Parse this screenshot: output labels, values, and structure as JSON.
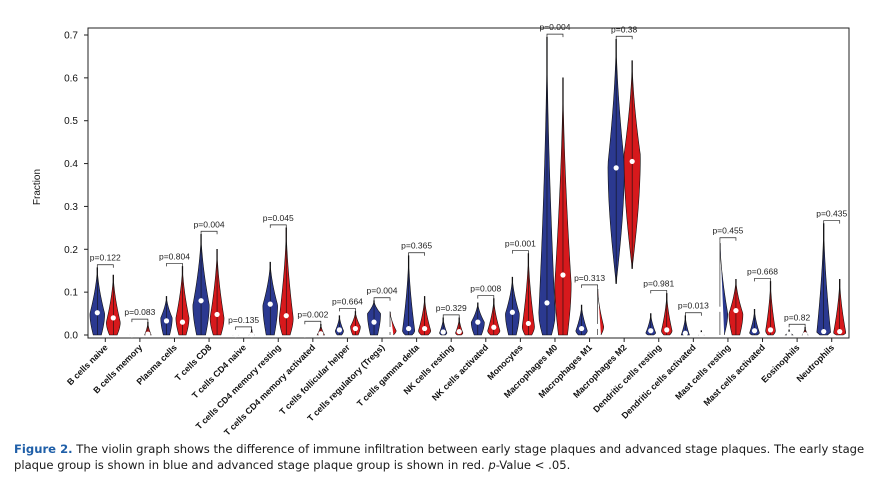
{
  "figure": {
    "label": "Figure 2.",
    "caption_main": "The violin graph shows the difference of immune infiltration between early stage plaques and advanced stage plaques. The early stage plaque group is shown in blue and advanced stage plaque group is shown in red.",
    "caption_pvalue_word": "p",
    "caption_pvalue_rest": "-Value < .05."
  },
  "colors": {
    "early": "#2b3990",
    "advanced": "#d7191c",
    "median_dot": "#ffffff"
  },
  "chart_data": {
    "type": "violin",
    "title": "",
    "xlabel": "",
    "ylabel": "Fraction",
    "ylim": [
      0,
      0.7
    ],
    "yticks": [
      "0.0",
      "0.1",
      "0.2",
      "0.3",
      "0.4",
      "0.5",
      "0.6",
      "0.7"
    ],
    "grid": false,
    "legend": "none",
    "series_names": [],
    "categories": [
      "B cells naive",
      "B cells memory",
      "Plasma cells",
      "T cells CD8",
      "T cells CD4 naive",
      "T cells CD4 memory resting",
      "T cells CD4 memory activated",
      "T cells follicular helper",
      "T cells regulatory (Tregs)",
      "T cells gamma delta",
      "NK cells resting",
      "NK cells activated",
      "Monocytes",
      "Macrophages M0",
      "Macrophages M1",
      "Macrophages M2",
      "Dendritic cells resting",
      "Dendritic cells activated",
      "Mast cells resting",
      "Mast cells activated",
      "Eosinophils",
      "Neutrophils"
    ],
    "p_values": [
      "p=0.122",
      "p=0.083",
      "p=0.804",
      "p=0.004",
      "p=0.135",
      "p=0.045",
      "p=0.002",
      "p=0.664",
      "p=0.004",
      "p=0.365",
      "p=0.329",
      "p=0.008",
      "p=0.001",
      "p=0.004",
      "p=0.313",
      "p=0.38",
      "p=0.981",
      "p=0.013",
      "p=0.455",
      "p=0.668",
      "p=0.82",
      "p=0.435"
    ],
    "groups": [
      {
        "early": {
          "min": 0.0,
          "max": 0.157,
          "median": 0.052,
          "peak": 0.05,
          "width": 0.9
        },
        "advanced": {
          "min": 0.0,
          "max": 0.14,
          "median": 0.04,
          "peak": 0.03,
          "width": 0.85
        }
      },
      {
        "early": {
          "min": 0.0,
          "max": 0.003,
          "median": 0.0,
          "peak": 0.0,
          "width": 0.3
        },
        "advanced": {
          "min": 0.0,
          "max": 0.03,
          "median": 0.002,
          "peak": 0.0,
          "width": 0.4
        }
      },
      {
        "early": {
          "min": 0.0,
          "max": 0.09,
          "median": 0.033,
          "peak": 0.04,
          "width": 0.7
        },
        "advanced": {
          "min": 0.0,
          "max": 0.16,
          "median": 0.03,
          "peak": 0.04,
          "width": 0.8
        }
      },
      {
        "early": {
          "min": 0.0,
          "max": 0.235,
          "median": 0.08,
          "peak": 0.07,
          "width": 1.0
        },
        "advanced": {
          "min": 0.0,
          "max": 0.2,
          "median": 0.048,
          "peak": 0.04,
          "width": 0.85
        }
      },
      {
        "early": {
          "min": 0.0,
          "max": 0.005,
          "median": 0.0,
          "peak": 0.0,
          "width": 0.25
        },
        "advanced": {
          "min": 0.0,
          "max": 0.012,
          "median": 0.0,
          "peak": 0.0,
          "width": 0.3
        }
      },
      {
        "early": {
          "min": 0.0,
          "max": 0.17,
          "median": 0.072,
          "peak": 0.07,
          "width": 0.9
        },
        "advanced": {
          "min": 0.0,
          "max": 0.25,
          "median": 0.045,
          "peak": 0.04,
          "width": 0.85
        }
      },
      {
        "early": {
          "min": 0.0,
          "max": 0.004,
          "median": 0.0,
          "peak": 0.0,
          "width": 0.25
        },
        "advanced": {
          "min": 0.0,
          "max": 0.025,
          "median": 0.003,
          "peak": 0.0,
          "width": 0.45
        }
      },
      {
        "early": {
          "min": 0.0,
          "max": 0.045,
          "median": 0.012,
          "peak": 0.01,
          "width": 0.5
        },
        "advanced": {
          "min": 0.0,
          "max": 0.055,
          "median": 0.015,
          "peak": 0.02,
          "width": 0.6
        }
      },
      {
        "early": {
          "min": 0.0,
          "max": 0.08,
          "median": 0.03,
          "peak": 0.05,
          "width": 0.8
        },
        "advanced": {
          "min": 0.0,
          "max": 0.055,
          "median": 0.013,
          "peak": 0.01,
          "width": 0.75
        }
      },
      {
        "early": {
          "min": 0.0,
          "max": 0.185,
          "median": 0.015,
          "peak": 0.01,
          "width": 0.75
        },
        "advanced": {
          "min": 0.0,
          "max": 0.09,
          "median": 0.015,
          "peak": 0.01,
          "width": 0.75
        }
      },
      {
        "early": {
          "min": 0.0,
          "max": 0.04,
          "median": 0.007,
          "peak": 0.005,
          "width": 0.45
        },
        "advanced": {
          "min": 0.0,
          "max": 0.04,
          "median": 0.008,
          "peak": 0.005,
          "width": 0.45
        }
      },
      {
        "early": {
          "min": 0.0,
          "max": 0.075,
          "median": 0.03,
          "peak": 0.03,
          "width": 0.8
        },
        "advanced": {
          "min": 0.0,
          "max": 0.085,
          "median": 0.018,
          "peak": 0.01,
          "width": 0.75
        }
      },
      {
        "early": {
          "min": 0.0,
          "max": 0.135,
          "median": 0.053,
          "peak": 0.05,
          "width": 0.85
        },
        "advanced": {
          "min": 0.0,
          "max": 0.19,
          "median": 0.027,
          "peak": 0.02,
          "width": 0.75
        }
      },
      {
        "early": {
          "min": 0.0,
          "max": 0.695,
          "median": 0.075,
          "peak": 0.05,
          "width": 1.0
        },
        "advanced": {
          "min": 0.0,
          "max": 0.6,
          "median": 0.14,
          "peak": 0.12,
          "width": 1.0
        }
      },
      {
        "early": {
          "min": 0.0,
          "max": 0.07,
          "median": 0.015,
          "peak": 0.01,
          "width": 0.7
        },
        "advanced": {
          "min": 0.0,
          "max": 0.11,
          "median": 0.02,
          "peak": 0.02,
          "width": 0.75
        }
      },
      {
        "early": {
          "min": 0.12,
          "max": 0.69,
          "median": 0.39,
          "peak": 0.4,
          "width": 1.0
        },
        "advanced": {
          "min": 0.155,
          "max": 0.64,
          "median": 0.405,
          "peak": 0.42,
          "width": 1.0
        }
      },
      {
        "early": {
          "min": 0.0,
          "max": 0.05,
          "median": 0.01,
          "peak": 0.005,
          "width": 0.6
        },
        "advanced": {
          "min": 0.0,
          "max": 0.097,
          "median": 0.012,
          "peak": 0.01,
          "width": 0.65
        }
      },
      {
        "early": {
          "min": 0.0,
          "max": 0.045,
          "median": 0.004,
          "peak": 0.0,
          "width": 0.5
        },
        "advanced": {
          "min": 0.0,
          "max": 0.01,
          "median": 0.001,
          "peak": 0.0,
          "width": 0.3
        }
      },
      {
        "early": {
          "min": 0.0,
          "max": 0.22,
          "median": 0.06,
          "peak": 0.05,
          "width": 0.95
        },
        "advanced": {
          "min": 0.0,
          "max": 0.13,
          "median": 0.057,
          "peak": 0.05,
          "width": 0.85
        }
      },
      {
        "early": {
          "min": 0.0,
          "max": 0.06,
          "median": 0.01,
          "peak": 0.005,
          "width": 0.6
        },
        "advanced": {
          "min": 0.0,
          "max": 0.125,
          "median": 0.012,
          "peak": 0.01,
          "width": 0.6
        }
      },
      {
        "early": {
          "min": 0.0,
          "max": 0.012,
          "median": 0.002,
          "peak": 0.0,
          "width": 0.45
        },
        "advanced": {
          "min": 0.0,
          "max": 0.018,
          "median": 0.001,
          "peak": 0.0,
          "width": 0.35
        }
      },
      {
        "early": {
          "min": 0.0,
          "max": 0.26,
          "median": 0.008,
          "peak": 0.005,
          "width": 0.85
        },
        "advanced": {
          "min": 0.0,
          "max": 0.13,
          "median": 0.008,
          "peak": 0.005,
          "width": 0.75
        }
      }
    ]
  }
}
